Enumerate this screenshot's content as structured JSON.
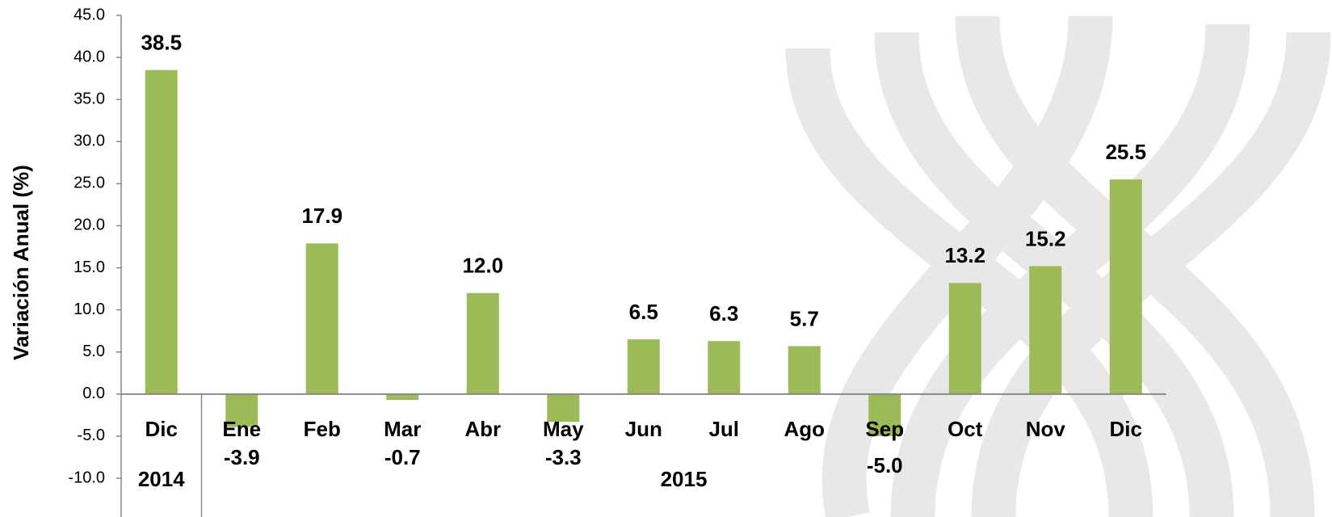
{
  "chart_data": {
    "type": "bar",
    "y_axis_label": "Variación Anual  (%)",
    "categories": [
      "Dic",
      "Ene",
      "Feb",
      "Mar",
      "Abr",
      "May",
      "Jun",
      "Jul",
      "Ago",
      "Sep",
      "Oct",
      "Nov",
      "Dic"
    ],
    "groups": [
      "2014",
      "2015"
    ],
    "values": [
      38.5,
      -3.9,
      17.9,
      -0.7,
      12,
      -3.3,
      6.5,
      6.3,
      5.7,
      -5,
      13.2,
      15.2,
      25.5
    ],
    "value_labels": [
      "38.5",
      "-3.9",
      "17.9",
      "-0.7",
      "12.0",
      "-3.3",
      "6.5",
      "6.3",
      "5.7",
      "-5.0",
      "13.2",
      "15.2",
      "25.5"
    ],
    "color": "#9bbb59",
    "ylim": [
      -10,
      45
    ],
    "yticks": [
      {
        "value": -10,
        "label": "-10.0"
      },
      {
        "value": -5,
        "label": "-5.0"
      },
      {
        "value": 0,
        "label": "0.0"
      },
      {
        "value": 5,
        "label": "5.0"
      },
      {
        "value": 10,
        "label": "10.0"
      },
      {
        "value": 15,
        "label": "15.0"
      },
      {
        "value": 20,
        "label": "20.0"
      },
      {
        "value": 25,
        "label": "25.0"
      },
      {
        "value": 30,
        "label": "30.0"
      },
      {
        "value": 35,
        "label": "35.0"
      },
      {
        "value": 40,
        "label": "40.0"
      },
      {
        "value": 45,
        "label": "45.0"
      }
    ]
  }
}
